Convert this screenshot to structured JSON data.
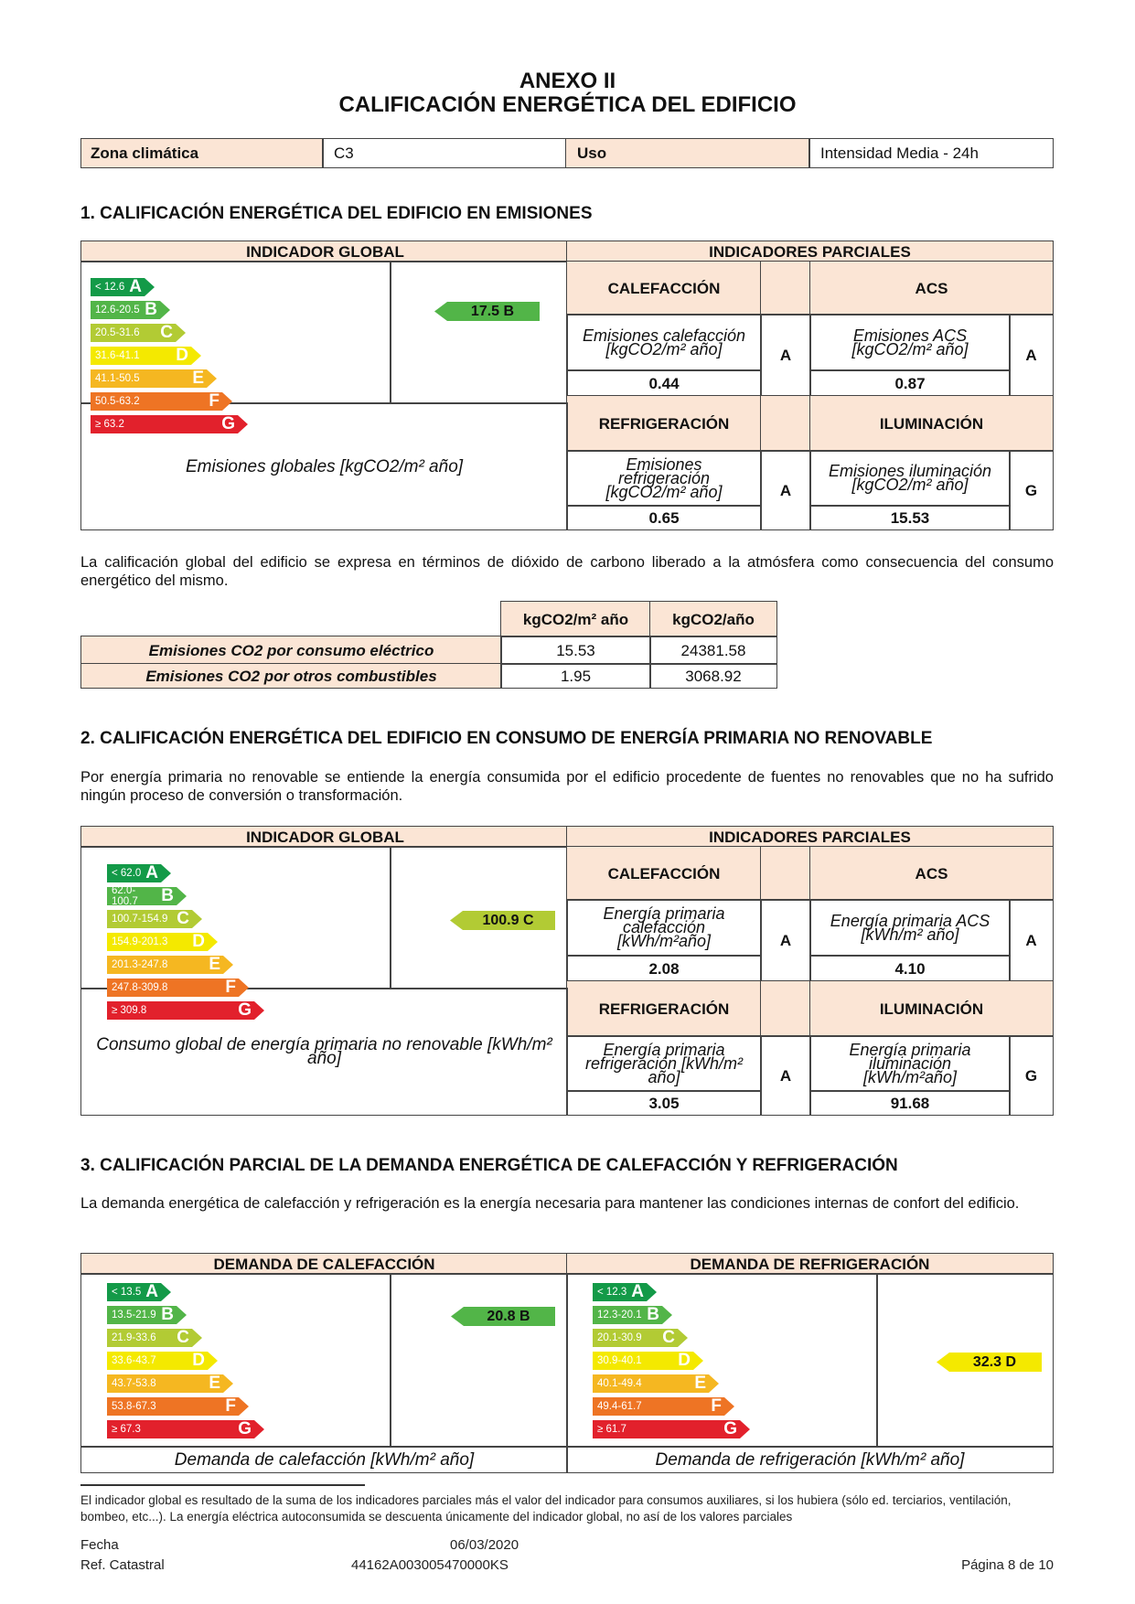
{
  "header": {
    "annex": "ANEXO II",
    "title": "CALIFICACIÓN ENERGÉTICA DEL EDIFICIO"
  },
  "info": {
    "zona_label": "Zona climática",
    "zona_value": "C3",
    "uso_label": "Uso",
    "uso_value": "Intensidad Media - 24h"
  },
  "colors": {
    "A": "#139a48",
    "B": "#52b548",
    "C": "#b2cb34",
    "D": "#f4e900",
    "E": "#f5b721",
    "F": "#ee7424",
    "G": "#e2212c",
    "header_bg": "#fbe5d5"
  },
  "scale_letters": [
    "A",
    "B",
    "C",
    "D",
    "E",
    "F",
    "G"
  ],
  "s1": {
    "heading": "1. CALIFICACIÓN ENERGÉTICA DEL EDIFICIO EN EMISIONES",
    "global": "INDICADOR GLOBAL",
    "partial": "INDICADORES PARCIALES",
    "scale": [
      "< 12.6",
      "12.6-20.5",
      "20.5-31.6",
      "31.6-41.1",
      "41.1-50.5",
      "50.5-63.2",
      "≥ 63.2"
    ],
    "indicator": {
      "value": "17.5 B",
      "letter": "B"
    },
    "global_label": "Emisiones globales [kgCO2/m² año]",
    "cal": {
      "title": "CALEFACCIÓN",
      "label": "Emisiones calefacción [kgCO2/m² año]",
      "value": "0.44",
      "rating": "A"
    },
    "acs": {
      "title": "ACS",
      "label": "Emisiones ACS [kgCO2/m² año]",
      "value": "0.87",
      "rating": "A"
    },
    "ref": {
      "title": "REFRIGERACIÓN",
      "label": "Emisiones refrigeración [kgCO2/m² año]",
      "value": "0.65",
      "rating": "A"
    },
    "ilu": {
      "title": "ILUMINACIÓN",
      "label": "Emisiones iluminación [kgCO2/m² año]",
      "value": "15.53",
      "rating": "G"
    },
    "para": "La calificación global del edificio se expresa en términos de dióxido de carbono liberado a la atmósfera como consecuencia del consumo energético del mismo.",
    "co2": {
      "col1": "kgCO2/m² año",
      "col2": "kgCO2/año",
      "rows": [
        {
          "label": "Emisiones CO2 por consumo eléctrico",
          "v1": "15.53",
          "v2": "24381.58"
        },
        {
          "label": "Emisiones CO2 por otros combustibles",
          "v1": "1.95",
          "v2": "3068.92"
        }
      ]
    }
  },
  "s2": {
    "heading": "2. CALIFICACIÓN ENERGÉTICA DEL EDIFICIO EN CONSUMO DE ENERGÍA PRIMARIA NO RENOVABLE",
    "para": "Por energía primaria no renovable se entiende la energía consumida por el edificio procedente de fuentes no renovables que no ha sufrido ningún proceso de conversión o transformación.",
    "global": "INDICADOR GLOBAL",
    "partial": "INDICADORES PARCIALES",
    "scale": [
      "< 62.0",
      "62.0-100.7",
      "100.7-154.9",
      "154.9-201.3",
      "201.3-247.8",
      "247.8-309.8",
      "≥ 309.8"
    ],
    "indicator": {
      "value": "100.9 C",
      "letter": "C"
    },
    "global_label": "Consumo global de energía primaria no renovable [kWh/m² año]",
    "cal": {
      "title": "CALEFACCIÓN",
      "label": "Energía primaria calefacción [kWh/m²año]",
      "value": "2.08",
      "rating": "A"
    },
    "acs": {
      "title": "ACS",
      "label": "Energía primaria ACS [kWh/m² año]",
      "value": "4.10",
      "rating": "A"
    },
    "ref": {
      "title": "REFRIGERACIÓN",
      "label": "Energía primaria refrigeración [kWh/m² año]",
      "value": "3.05",
      "rating": "A"
    },
    "ilu": {
      "title": "ILUMINACIÓN",
      "label": "Energía primaria iluminación [kWh/m²año]",
      "value": "91.68",
      "rating": "G"
    }
  },
  "s3": {
    "heading": "3. CALIFICACIÓN PARCIAL DE LA DEMANDA ENERGÉTICA DE CALEFACCIÓN Y REFRIGERACIÓN",
    "para": "La demanda energética de calefacción y refrigeración es la energía necesaria para mantener las condiciones internas de confort del edificio.",
    "heat": {
      "title": "DEMANDA DE CALEFACCIÓN",
      "scale": [
        "< 13.5",
        "13.5-21.9",
        "21.9-33.6",
        "33.6-43.7",
        "43.7-53.8",
        "53.8-67.3",
        "≥ 67.3"
      ],
      "indicator": {
        "value": "20.8 B",
        "letter": "B"
      },
      "label": "Demanda de calefacción [kWh/m² año]"
    },
    "cool": {
      "title": "DEMANDA DE REFRIGERACIÓN",
      "scale": [
        "< 12.3",
        "12.3-20.1",
        "20.1-30.9",
        "30.9-40.1",
        "40.1-49.4",
        "49.4-61.7",
        "≥ 61.7"
      ],
      "indicator": {
        "value": "32.3 D",
        "letter": "D"
      },
      "label": "Demanda de refrigeración [kWh/m² año]"
    }
  },
  "footnote": "El indicador global es resultado de la suma de los indicadores parciales más el valor del indicador para consumos auxiliares, si los hubiera (sólo ed. terciarios, ventilación, bombeo, etc...). La energía eléctrica autoconsumida se descuenta únicamente del indicador global, no así de los valores parciales",
  "footer": {
    "fecha_label": "Fecha",
    "fecha": "06/03/2020",
    "ref_label": "Ref. Catastral",
    "ref": "44162A003005470000KS",
    "page": "Página 8 de 10"
  }
}
